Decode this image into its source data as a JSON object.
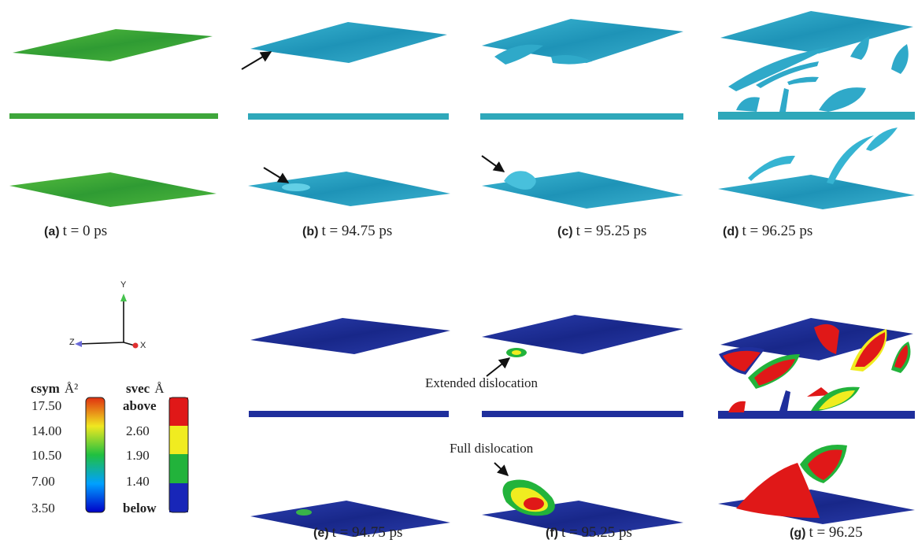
{
  "panels_top": [
    {
      "letter": "(a)",
      "text": "t = 0 ps"
    },
    {
      "letter": "(b)",
      "text": "t = 94.75 ps"
    },
    {
      "letter": "(c)",
      "text": "t = 95.25 ps"
    },
    {
      "letter": "(d)",
      "text": "t = 96.25 ps"
    }
  ],
  "panels_bottom": [
    {
      "letter": "(e)",
      "text": "t = 94.75 ps"
    },
    {
      "letter": "(f)",
      "text": "t = 95.25 ps"
    },
    {
      "letter": "(g)",
      "text": "t = 96.25"
    }
  ],
  "annotations": {
    "extended": "Extended dislocation",
    "full": "Full dislocation"
  },
  "axes": {
    "y": "Y",
    "z": "Z",
    "x": "X"
  },
  "legend_csym": {
    "title": "csym",
    "unit": "Å²",
    "ticks": [
      "17.50",
      "14.00",
      "10.50",
      "7.00",
      "3.50"
    ]
  },
  "legend_svec": {
    "title": "svec",
    "unit": "Å",
    "ticks": [
      "above",
      "2.60",
      "1.90",
      "1.40",
      "below"
    ]
  },
  "colors": {
    "green_atoms": "#3fa53a",
    "cyan_atoms": "#2fa9c9",
    "blue_atoms": "#1f2f9c",
    "red": "#d81e1e",
    "yellow": "#ecea2a",
    "green": "#22b33b"
  }
}
